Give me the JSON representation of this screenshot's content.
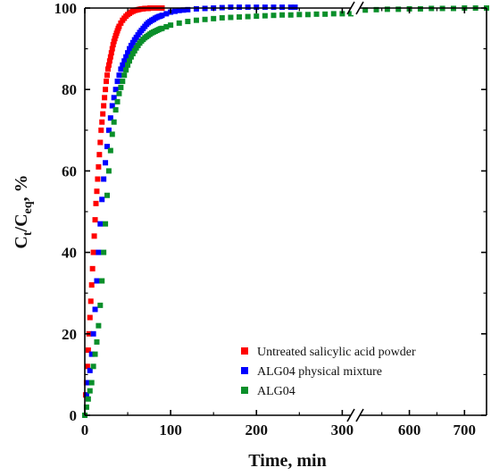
{
  "chart_data": {
    "type": "scatter",
    "title": "",
    "xlabel": "Time, min",
    "ylabel": {
      "main": "C",
      "sub1": "t",
      "mid": "/C",
      "sub2": "eq",
      "unit": ", %"
    },
    "x_axis": {
      "broken": true,
      "segments": [
        {
          "range": [
            0,
            310
          ],
          "ticks": [
            0,
            100,
            200,
            300
          ]
        },
        {
          "range": [
            510,
            740
          ],
          "ticks": [
            600,
            700
          ]
        }
      ],
      "break_marker": "//"
    },
    "ylim": [
      0,
      100
    ],
    "yticks": [
      0,
      20,
      40,
      60,
      80,
      100
    ],
    "legend": {
      "position": "bottom-right"
    },
    "series": [
      {
        "name": "Untreated salicylic acid powder",
        "color": "#ff0000",
        "x": [
          0,
          1,
          2,
          3,
          4,
          5,
          6,
          7,
          8,
          9,
          10,
          11,
          12,
          13,
          14,
          15,
          16,
          17,
          18,
          19,
          20,
          21,
          22,
          23,
          24,
          25,
          26,
          27,
          28,
          29,
          30,
          31,
          32,
          33,
          34,
          35,
          36,
          37,
          38,
          39,
          40,
          42,
          44,
          46,
          48,
          50,
          52,
          54,
          56,
          58,
          60,
          62,
          64,
          66,
          68,
          70,
          72,
          74,
          76,
          78,
          80,
          82,
          84,
          86,
          88,
          90
        ],
        "y": [
          0,
          5,
          8,
          12,
          16,
          20,
          24,
          28,
          32,
          36,
          40,
          44,
          48,
          52,
          55,
          58,
          61,
          64,
          67,
          70,
          72,
          74,
          76,
          78,
          80,
          82,
          83.5,
          85,
          86,
          87,
          88,
          89,
          90,
          91,
          91.8,
          92.5,
          93.2,
          93.8,
          94.4,
          95,
          95.5,
          96.3,
          97,
          97.5,
          98,
          98.4,
          98.7,
          99,
          99.2,
          99.4,
          99.5,
          99.6,
          99.7,
          99.8,
          99.8,
          99.9,
          99.9,
          99.9,
          100,
          100,
          100,
          100,
          100,
          100,
          100,
          100
        ]
      },
      {
        "name": "ALG04 physical mixture",
        "color": "#0000ff",
        "x": [
          0,
          2,
          4,
          6,
          8,
          10,
          12,
          14,
          16,
          18,
          20,
          22,
          24,
          26,
          28,
          30,
          32,
          34,
          36,
          38,
          40,
          42,
          44,
          46,
          48,
          50,
          52,
          54,
          56,
          58,
          60,
          62,
          64,
          66,
          68,
          70,
          72,
          74,
          76,
          78,
          80,
          82,
          84,
          86,
          88,
          90,
          95,
          100,
          105,
          110,
          115,
          120,
          130,
          140,
          150,
          160,
          170,
          180,
          190,
          200,
          210,
          220,
          230,
          240,
          245
        ],
        "y": [
          0,
          5,
          8,
          11,
          15,
          20,
          26,
          33,
          40,
          47,
          53,
          58,
          62,
          66,
          70,
          73,
          76,
          78,
          80,
          82,
          83.5,
          85,
          86,
          87,
          88,
          89,
          90,
          90.8,
          91.5,
          92.2,
          92.8,
          93.4,
          94,
          94.5,
          95,
          95.5,
          96,
          96.4,
          96.7,
          97,
          97.2,
          97.5,
          97.7,
          97.9,
          98,
          98.2,
          98.6,
          99,
          99.2,
          99.4,
          99.5,
          99.6,
          99.8,
          99.9,
          100,
          100.1,
          100.2,
          100.2,
          100.2,
          100.2,
          100.2,
          100.2,
          100.2,
          100.2,
          100.2
        ]
      },
      {
        "name": "ALG04",
        "color": "#0a8f2a",
        "x": [
          0,
          2,
          4,
          6,
          8,
          10,
          12,
          14,
          16,
          18,
          20,
          22,
          24,
          26,
          28,
          30,
          32,
          34,
          36,
          38,
          40,
          42,
          44,
          46,
          48,
          50,
          52,
          54,
          56,
          58,
          60,
          62,
          64,
          66,
          68,
          70,
          72,
          74,
          76,
          78,
          80,
          82,
          84,
          86,
          88,
          90,
          95,
          100,
          110,
          120,
          130,
          140,
          150,
          160,
          170,
          180,
          190,
          200,
          210,
          220,
          230,
          240,
          250,
          260,
          270,
          280,
          290,
          300,
          310,
          520,
          540,
          560,
          580,
          600,
          620,
          640,
          660,
          680,
          700,
          720,
          740
        ],
        "y": [
          0,
          2,
          4,
          6,
          8,
          12,
          15,
          18,
          22,
          27,
          33,
          40,
          47,
          54,
          60,
          65,
          69,
          72,
          75,
          77,
          79,
          80.5,
          82,
          83.5,
          84.8,
          86,
          87,
          88,
          88.8,
          89.5,
          90.2,
          90.8,
          91.4,
          91.9,
          92.3,
          92.7,
          93,
          93.3,
          93.6,
          93.9,
          94.1,
          94.3,
          94.5,
          94.7,
          94.9,
          95,
          95.4,
          95.8,
          96.3,
          96.7,
          97,
          97.2,
          97.4,
          97.6,
          97.7,
          97.8,
          97.9,
          98,
          98.1,
          98.2,
          98.3,
          98.3,
          98.4,
          98.4,
          98.5,
          98.5,
          98.6,
          98.6,
          98.6,
          99.5,
          99.6,
          99.7,
          99.7,
          99.8,
          99.8,
          99.9,
          99.9,
          99.9,
          100,
          100,
          100
        ]
      }
    ]
  }
}
